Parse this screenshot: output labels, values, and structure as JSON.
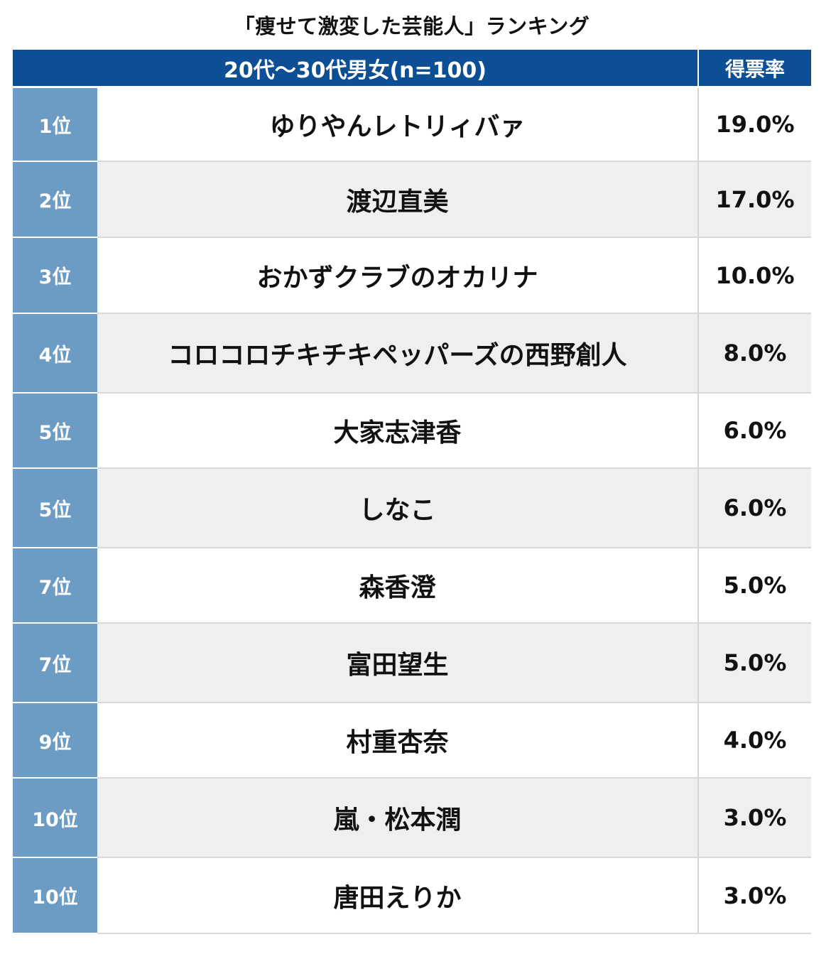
{
  "chart_data": {
    "type": "table",
    "title": "「痩せて激変した芸能人」ランキング",
    "header": {
      "group": "20代〜30代男女(n=100)",
      "rate_label": "得票率"
    },
    "rows": [
      {
        "rank": "1位",
        "name": "ゆりやんレトリィバァ",
        "rate": "19.0%",
        "value": 19.0
      },
      {
        "rank": "2位",
        "name": "渡辺直美",
        "rate": "17.0%",
        "value": 17.0
      },
      {
        "rank": "3位",
        "name": "おかずクラブのオカリナ",
        "rate": "10.0%",
        "value": 10.0
      },
      {
        "rank": "4位",
        "name": "コロコロチキチキペッパーズの西野創人",
        "rate": "8.0%",
        "value": 8.0
      },
      {
        "rank": "5位",
        "name": "大家志津香",
        "rate": "6.0%",
        "value": 6.0
      },
      {
        "rank": "5位",
        "name": "しなこ",
        "rate": "6.0%",
        "value": 6.0
      },
      {
        "rank": "7位",
        "name": "森香澄",
        "rate": "5.0%",
        "value": 5.0
      },
      {
        "rank": "7位",
        "name": "富田望生",
        "rate": "5.0%",
        "value": 5.0
      },
      {
        "rank": "9位",
        "name": "村重杏奈",
        "rate": "4.0%",
        "value": 4.0
      },
      {
        "rank": "10位",
        "name": "嵐・松本潤",
        "rate": "3.0%",
        "value": 3.0
      },
      {
        "rank": "10位",
        "name": "唐田えりか",
        "rate": "3.0%",
        "value": 3.0
      }
    ]
  },
  "colors": {
    "header_bg": "#0d4f94",
    "rank_bg": "#6c9bc4",
    "row_alt_bg": "#eeefef",
    "row_bg": "#ffffff"
  }
}
